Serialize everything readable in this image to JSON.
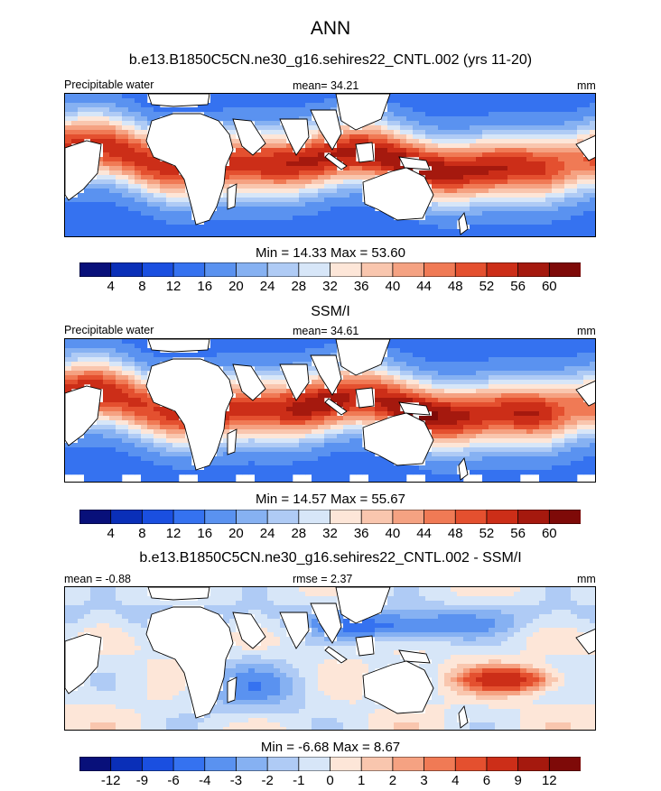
{
  "main_title": "ANN",
  "panels": [
    {
      "title": "b.e13.B1850C5CN.ne30_g16.sehires22_CNTL.002 (yrs 11-20)",
      "left_label": "Precipitable water",
      "center_label": "mean=  34.21",
      "right_label": "mm",
      "minmax": "Min =  14.33 Max =  53.60"
    },
    {
      "title": "SSM/I",
      "left_label": "Precipitable water",
      "center_label": "mean=  34.61",
      "right_label": "mm",
      "minmax": "Min =  14.57 Max =  55.67"
    },
    {
      "title": "b.e13.B1850C5CN.ne30_g16.sehires22_CNTL.002 - SSM/I",
      "left_label": "mean =  -0.88",
      "center_label": "rmse =   2.37",
      "right_label": "mm",
      "minmax": "Min =  -6.68 Max =   8.67"
    }
  ],
  "chart_data": [
    {
      "type": "heatmap",
      "title": "b.e13.B1850C5CN.ne30_g16.sehires22_CNTL.002 (yrs 11-20)",
      "variable": "Precipitable water",
      "units": "mm",
      "mean": 34.21,
      "min": 14.33,
      "max": 53.6,
      "colorbar_levels": [
        4,
        8,
        12,
        16,
        20,
        24,
        28,
        32,
        36,
        40,
        44,
        48,
        52,
        56,
        60
      ],
      "colorbar_labels": [
        "4",
        "8",
        "12",
        "16",
        "20",
        "24",
        "28",
        "32",
        "36",
        "40",
        "44",
        "48",
        "52",
        "56",
        "60"
      ],
      "colors": [
        "#08107a",
        "#0a2fb8",
        "#1a4fe0",
        "#3572f0",
        "#5a92f0",
        "#86b1f2",
        "#afcbf5",
        "#d7e6f8",
        "#fde6d8",
        "#f9c6ae",
        "#f5a282",
        "#f07a55",
        "#e4502f",
        "#cc2e18",
        "#a5190e",
        "#7e0a08"
      ]
    },
    {
      "type": "heatmap",
      "title": "SSM/I",
      "variable": "Precipitable water",
      "units": "mm",
      "mean": 34.61,
      "min": 14.57,
      "max": 55.67,
      "colorbar_levels": [
        4,
        8,
        12,
        16,
        20,
        24,
        28,
        32,
        36,
        40,
        44,
        48,
        52,
        56,
        60
      ],
      "colorbar_labels": [
        "4",
        "8",
        "12",
        "16",
        "20",
        "24",
        "28",
        "32",
        "36",
        "40",
        "44",
        "48",
        "52",
        "56",
        "60"
      ],
      "colors": [
        "#08107a",
        "#0a2fb8",
        "#1a4fe0",
        "#3572f0",
        "#5a92f0",
        "#86b1f2",
        "#afcbf5",
        "#d7e6f8",
        "#fde6d8",
        "#f9c6ae",
        "#f5a282",
        "#f07a55",
        "#e4502f",
        "#cc2e18",
        "#a5190e",
        "#7e0a08"
      ]
    },
    {
      "type": "heatmap",
      "title": "b.e13.B1850C5CN.ne30_g16.sehires22_CNTL.002 - SSM/I",
      "units": "mm",
      "mean": -0.88,
      "rmse": 2.37,
      "min": -6.68,
      "max": 8.67,
      "colorbar_levels": [
        -12,
        -9,
        -6,
        -4,
        -3,
        -2,
        -1,
        0,
        1,
        2,
        3,
        4,
        6,
        9,
        12
      ],
      "colorbar_labels": [
        "-12",
        "-9",
        "-6",
        "-4",
        "-3",
        "-2",
        "-1",
        "0",
        "1",
        "2",
        "3",
        "4",
        "6",
        "9",
        "12"
      ],
      "colors": [
        "#08107a",
        "#0a2fb8",
        "#1a4fe0",
        "#3572f0",
        "#5a92f0",
        "#86b1f2",
        "#afcbf5",
        "#d7e6f8",
        "#fde6d8",
        "#f9c6ae",
        "#f5a282",
        "#f07a55",
        "#e4502f",
        "#cc2e18",
        "#a5190e",
        "#7e0a08"
      ]
    }
  ]
}
